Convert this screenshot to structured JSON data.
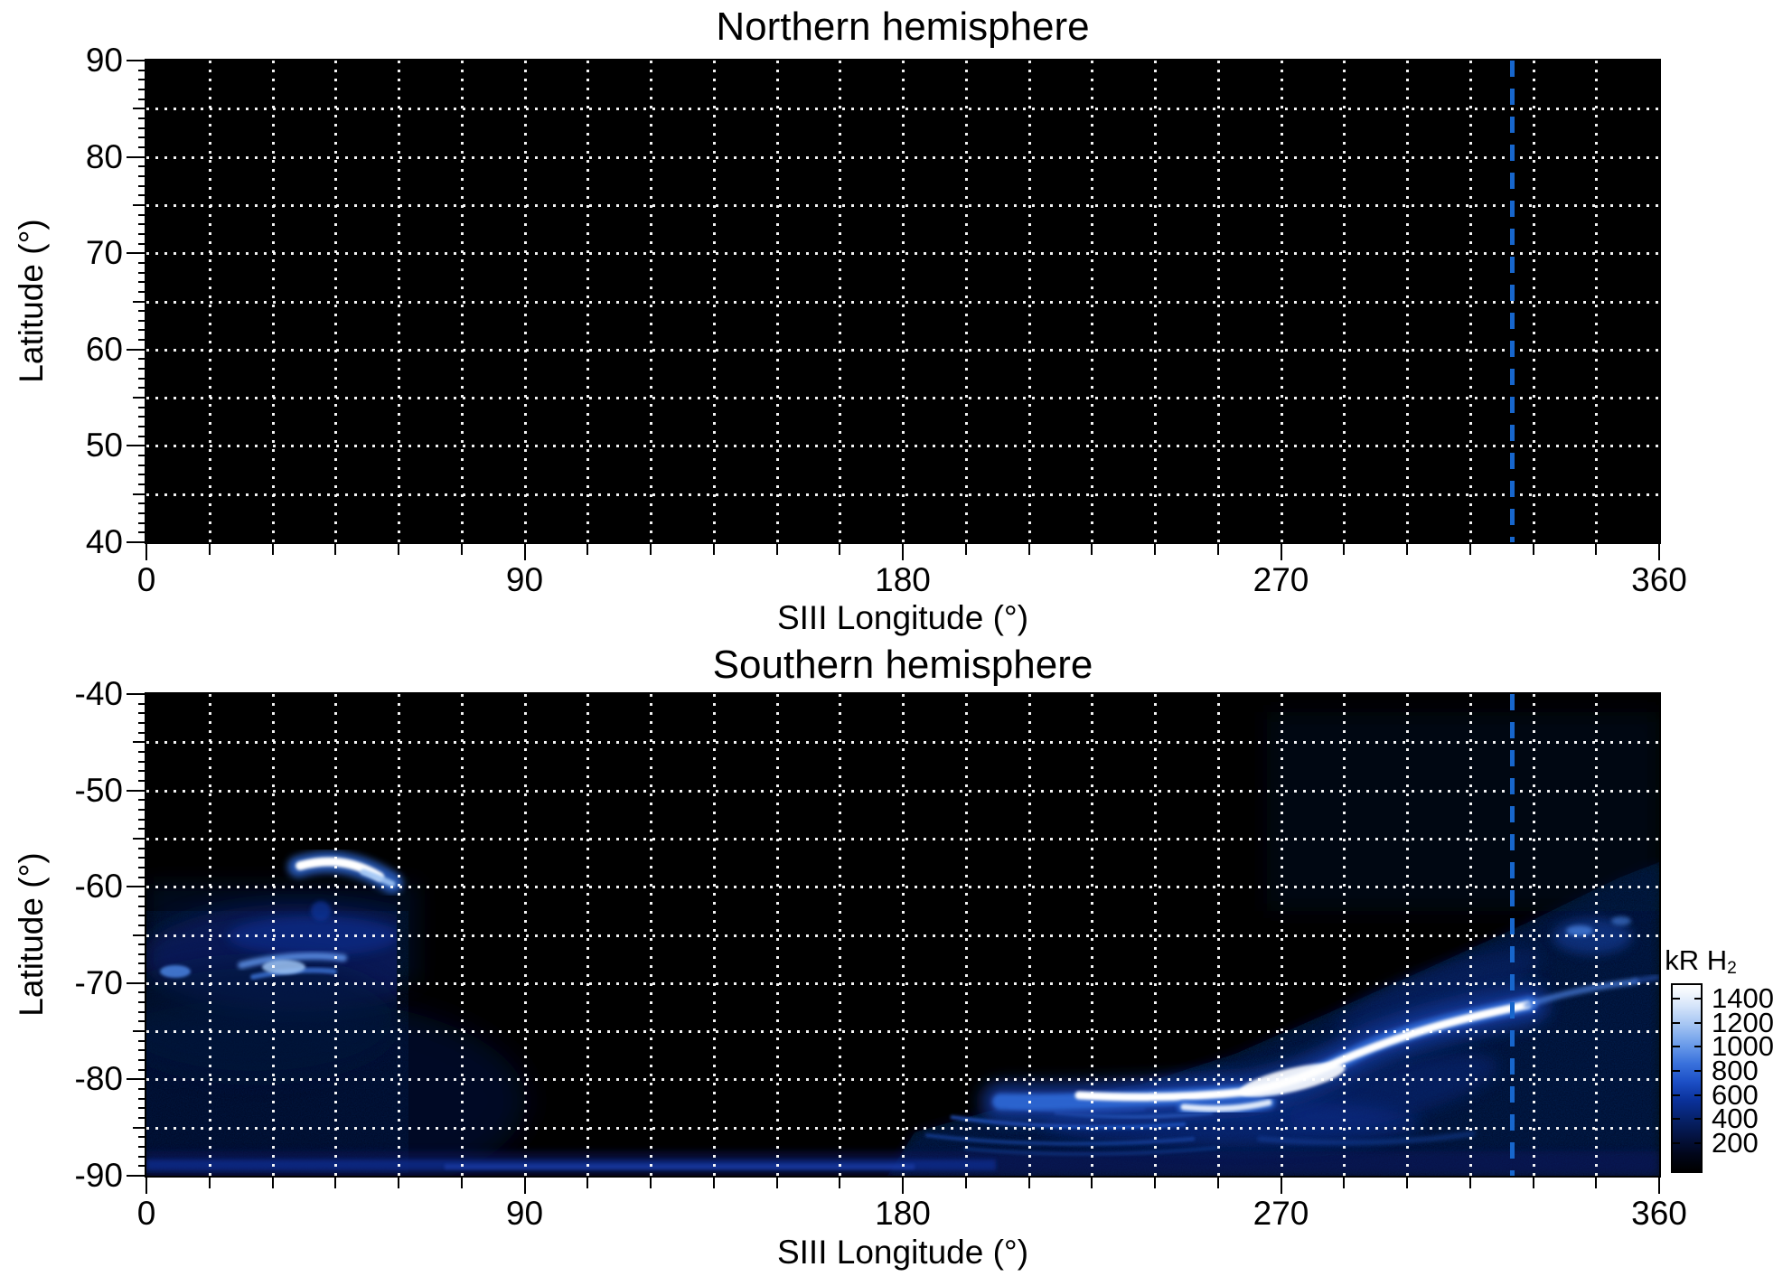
{
  "figure": {
    "northern_title": "Northern hemisphere",
    "southern_title": "Southern hemisphere",
    "x_axis_label": "SIII Longitude (°)",
    "y_axis_label": "Latitude (°)"
  },
  "x_ticks": [
    {
      "label": "0",
      "deg": 0
    },
    {
      "label": "90",
      "deg": 90
    },
    {
      "label": "180",
      "deg": 180
    },
    {
      "label": "270",
      "deg": 270
    },
    {
      "label": "360",
      "deg": 360
    }
  ],
  "northern_y_ticks": [
    {
      "label": "90",
      "deg": 90
    },
    {
      "label": "80",
      "deg": 80
    },
    {
      "label": "70",
      "deg": 70
    },
    {
      "label": "60",
      "deg": 60
    },
    {
      "label": "50",
      "deg": 50
    },
    {
      "label": "40",
      "deg": 40
    }
  ],
  "southern_y_ticks": [
    {
      "label": "-40",
      "deg": -40
    },
    {
      "label": "-50",
      "deg": -50
    },
    {
      "label": "-60",
      "deg": -60
    },
    {
      "label": "-70",
      "deg": -70
    },
    {
      "label": "-80",
      "deg": -80
    },
    {
      "label": "-90",
      "deg": -90
    }
  ],
  "colorbar": {
    "title": "kR H",
    "title_sub": "2",
    "ticks": [
      {
        "label": "1400",
        "value": 1400
      },
      {
        "label": "1200",
        "value": 1200
      },
      {
        "label": "1000",
        "value": 1000
      },
      {
        "label": "800",
        "value": 800
      },
      {
        "label": "600",
        "value": 600
      },
      {
        "label": "400",
        "value": 400
      },
      {
        "label": "200",
        "value": 200
      }
    ],
    "range": [
      0,
      1500
    ],
    "gradient": [
      [
        0,
        "#000000"
      ],
      [
        9,
        "#01061a"
      ],
      [
        16,
        "#030f36"
      ],
      [
        27,
        "#062065"
      ],
      [
        38,
        "#0a319a"
      ],
      [
        48,
        "#1c4fc6"
      ],
      [
        58,
        "#3a72dc"
      ],
      [
        68,
        "#6b9cea"
      ],
      [
        79,
        "#a6c6f3"
      ],
      [
        89,
        "#d6e5fa"
      ],
      [
        96,
        "#f2f7fd"
      ],
      [
        100,
        "#ffffff"
      ]
    ]
  },
  "reference_line": {
    "longitude_deg": 325,
    "color": "#1766cc",
    "style": "dashed"
  },
  "chart_data": [
    {
      "type": "heatmap",
      "title": "Northern hemisphere",
      "xlabel": "SIII Longitude (°)",
      "ylabel": "Latitude (°)",
      "xlim": [
        0,
        360
      ],
      "ylim": [
        40,
        90
      ],
      "xtick_values": [
        0,
        90,
        180,
        270,
        360
      ],
      "ytick_values": [
        90,
        80,
        70,
        60,
        50,
        40
      ],
      "x_grid_step_deg": 15,
      "y_grid_step_deg": 5,
      "x_minor_tick_step_deg": 15,
      "y_minor_tick_step_deg": 1,
      "grid": "dotted white on black",
      "content": "no detectable H2 emission (entirely black panel)",
      "reference_line_longitude_deg": 325
    },
    {
      "type": "heatmap",
      "title": "Southern hemisphere",
      "xlabel": "SIII Longitude (°)",
      "ylabel": "Latitude (°)",
      "xlim": [
        0,
        360
      ],
      "ylim": [
        -90,
        -40
      ],
      "xtick_values": [
        0,
        90,
        180,
        270,
        360
      ],
      "ytick_values": [
        -40,
        -50,
        -60,
        -70,
        -80,
        -90
      ],
      "x_grid_step_deg": 15,
      "y_grid_step_deg": 5,
      "x_minor_tick_step_deg": 15,
      "y_minor_tick_step_deg": 1,
      "grid": "dotted white on black",
      "colorbar_label": "kR H2",
      "colorbar_range_kR": [
        0,
        1500
      ],
      "reference_line_longitude_deg": 325,
      "features": [
        {
          "name": "bright dawn arc",
          "lon_deg": [
            36,
            59
          ],
          "lat_deg": [
            -57.5,
            -59.8
          ],
          "peak_kR": 1500,
          "description": "short saturated white arc with blue halo, dipping toward larger longitude"
        },
        {
          "name": "faint spot below arc",
          "lon_deg": [
            38,
            45
          ],
          "lat_deg": [
            -62,
            -63
          ],
          "peak_kR": 300
        },
        {
          "name": "diffuse emission patch",
          "lon_deg": [
            0,
            59
          ],
          "lat_deg": [
            -63,
            -70
          ],
          "peak_kR": 900,
          "description": "patchy blue glow with bright streaks near lat -67/-69, sharp cutoff at lon 59"
        },
        {
          "name": "left-edge spot",
          "lon_deg": [
            3,
            10
          ],
          "lat_deg": [
            -68,
            -70
          ],
          "peak_kR": 600
        },
        {
          "name": "polar faint glow",
          "lon_deg": [
            0,
            95
          ],
          "lat_deg": [
            -70,
            -90
          ],
          "peak_kR": 150
        },
        {
          "name": "bottom striated band",
          "lon_deg": [
            0,
            200
          ],
          "lat_deg": [
            -86,
            -90
          ],
          "peak_kR": 300
        },
        {
          "name": "main auroral oval arc",
          "path_lon_lat": [
            [
              205,
              -81.9
            ],
            [
              222,
              -81.3
            ],
            [
              240,
              -81.6
            ],
            [
              256,
              -81.5
            ],
            [
              270,
              -79.2
            ],
            [
              283,
              -77.5
            ],
            [
              296,
              -76.3
            ],
            [
              310,
              -74.5
            ],
            [
              320,
              -73.2
            ],
            [
              329,
              -72.2
            ]
          ],
          "peak_kR": 1500,
          "description": "bright white arc, flat near lat -81.5 then rising toward lon 330"
        },
        {
          "name": "poleward faint tail",
          "path_lon_lat": [
            [
              330,
              -72
            ],
            [
              347,
              -70.5
            ],
            [
              360,
              -70
            ]
          ],
          "peak_kR": 600
        },
        {
          "name": "secondary streak",
          "lon_deg": [
            247,
            267
          ],
          "lat_deg": [
            -82.5,
            -83
          ],
          "peak_kR": 1300
        },
        {
          "name": "fan striations",
          "lon_deg": [
            185,
            250
          ],
          "lat_deg": [
            -82,
            -86.5
          ],
          "peak_kR": 500,
          "description": "several thin arcs fanning equatorward-left of the main arc start"
        },
        {
          "name": "arc halo / diffuse glow",
          "lon_deg": [
            210,
            310
          ],
          "lat_deg": [
            -78,
            -86
          ],
          "peak_kR": 500
        },
        {
          "name": "detached diffuse patch",
          "lon_deg": [
            337,
            352
          ],
          "lat_deg": [
            -64,
            -67.5
          ],
          "peak_kR": 450
        },
        {
          "name": "noise floor",
          "lon_deg": [
            180,
            360
          ],
          "lat_deg": [
            -45,
            -90
          ],
          "peak_kR": 120,
          "description": "granular dark-blue background, brightening toward pole and large longitudes"
        }
      ]
    }
  ]
}
